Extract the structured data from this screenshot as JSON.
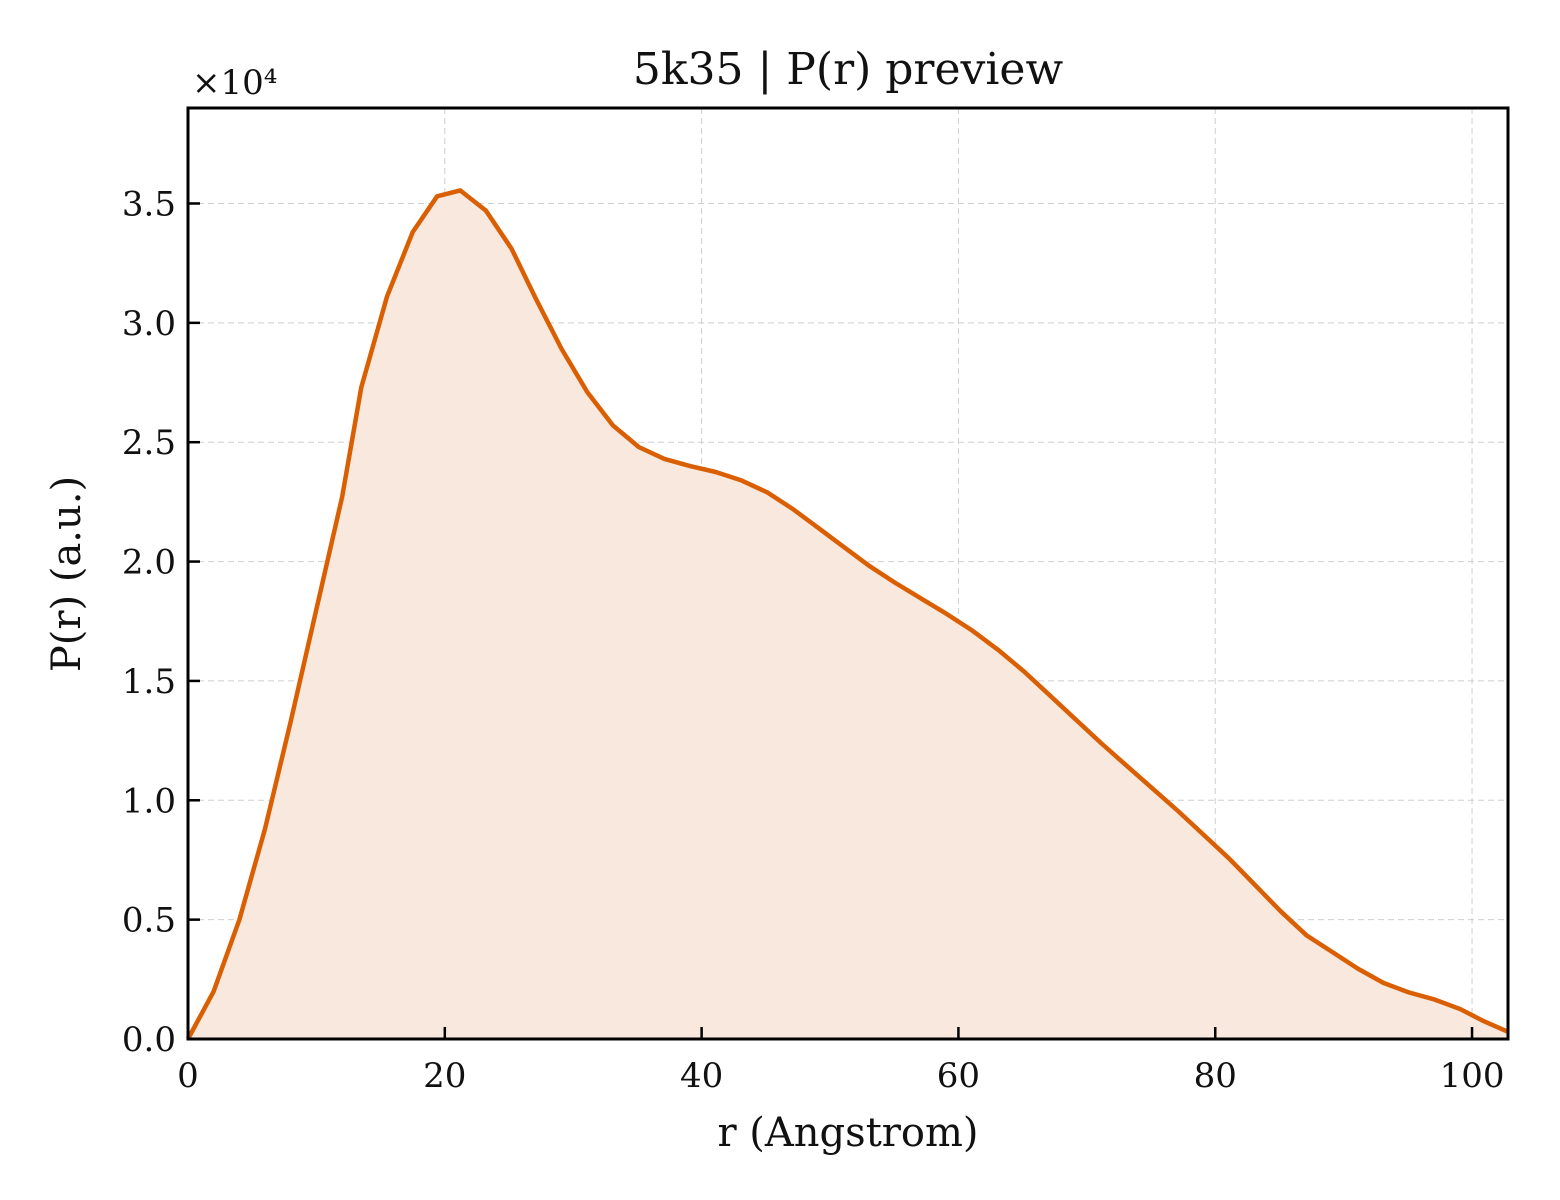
{
  "chart_data": {
    "type": "area",
    "title": "5k35 | P(r) preview",
    "xlabel": "r (Angstrom)",
    "ylabel": "P(r) (a.u.)",
    "y_offset_label": "×10⁴",
    "xlim": [
      0,
      102.8
    ],
    "ylim": [
      0,
      3.9
    ],
    "grid": true,
    "line_color": "#d95f02",
    "fill_color": "#f8e8de",
    "x_ticks": [
      0,
      20,
      40,
      60,
      80,
      100
    ],
    "x_tick_labels": [
      "0",
      "20",
      "40",
      "60",
      "80",
      "100"
    ],
    "y_ticks": [
      0,
      0.5,
      1.0,
      1.5,
      2.0,
      2.5,
      3.0,
      3.5
    ],
    "y_tick_labels": [
      "0.0",
      "0.5",
      "1.0",
      "1.5",
      "2.0",
      "2.5",
      "3.0",
      "3.5"
    ],
    "series": [
      {
        "x": [
          0,
          2,
          4,
          6,
          8,
          10,
          12,
          13.5,
          15.5,
          17.5,
          19.4,
          21.2,
          23.2,
          25.2,
          27.1,
          29.1,
          31.1,
          33.1,
          35.1,
          37.1,
          39.1,
          41.1,
          43.1,
          45.1,
          47.1,
          49.1,
          51.1,
          53.1,
          55.1,
          57.1,
          59.1,
          61.1,
          63.1,
          65.1,
          67.1,
          69.1,
          71.1,
          73.1,
          75.1,
          77.1,
          79.1,
          81.1,
          83.1,
          85.1,
          87.1,
          89.1,
          91.1,
          93.1,
          95.1,
          97.1,
          99.1,
          100.9,
          102.8
        ],
        "y": [
          0.0,
          0.2,
          0.5,
          0.88,
          1.33,
          1.8,
          2.27,
          2.73,
          3.11,
          3.38,
          3.53,
          3.555,
          3.47,
          3.31,
          3.1,
          2.89,
          2.71,
          2.57,
          2.48,
          2.43,
          2.4,
          2.375,
          2.34,
          2.29,
          2.22,
          2.14,
          2.06,
          1.98,
          1.91,
          1.845,
          1.78,
          1.71,
          1.63,
          1.54,
          1.44,
          1.34,
          1.24,
          1.145,
          1.05,
          0.955,
          0.855,
          0.755,
          0.645,
          0.535,
          0.435,
          0.365,
          0.295,
          0.235,
          0.195,
          0.165,
          0.125,
          0.075,
          0.03
        ]
      }
    ]
  }
}
